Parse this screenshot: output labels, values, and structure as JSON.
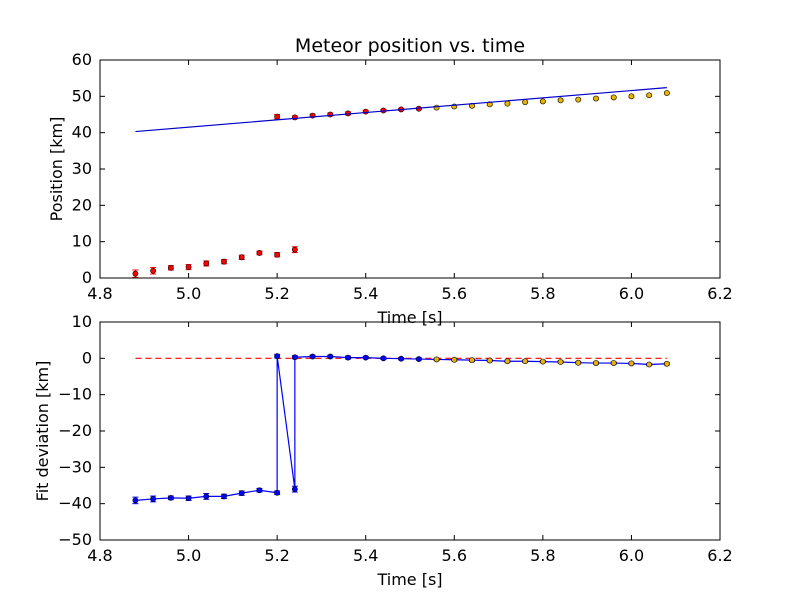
{
  "chart_data": [
    {
      "type": "scatter",
      "title": "Meteor position vs. time",
      "xlabel": "Time [s]",
      "ylabel": "Position [km]",
      "xlim": [
        4.8,
        6.2
      ],
      "ylim": [
        0,
        60
      ],
      "xticks": [
        "4.8",
        "5.0",
        "5.2",
        "5.4",
        "5.6",
        "5.8",
        "6.0",
        "6.2"
      ],
      "yticks": [
        "0",
        "10",
        "20",
        "30",
        "40",
        "50",
        "60"
      ],
      "grid": false,
      "series": [
        {
          "kind": "errorbar-points",
          "color": "#ff0000",
          "points": [
            {
              "x": 4.88,
              "y": 1.2,
              "err": 1.0
            },
            {
              "x": 4.92,
              "y": 2.0,
              "err": 0.9
            },
            {
              "x": 4.96,
              "y": 2.8,
              "err": 0.6
            },
            {
              "x": 5.0,
              "y": 3.0,
              "err": 0.7
            },
            {
              "x": 5.04,
              "y": 4.0,
              "err": 0.7
            },
            {
              "x": 5.08,
              "y": 4.5,
              "err": 0.6
            },
            {
              "x": 5.12,
              "y": 5.7,
              "err": 0.6
            },
            {
              "x": 5.16,
              "y": 6.9,
              "err": 0.5
            },
            {
              "x": 5.2,
              "y": 6.4,
              "err": 0.6
            },
            {
              "x": 5.24,
              "y": 7.8,
              "err": 0.8
            },
            {
              "x": 5.2,
              "y": 44.4,
              "err": 0.6
            },
            {
              "x": 5.24,
              "y": 44.2,
              "err": 0.4
            },
            {
              "x": 5.28,
              "y": 44.7,
              "err": 0.4
            },
            {
              "x": 5.32,
              "y": 45.0,
              "err": 0.4
            },
            {
              "x": 5.36,
              "y": 45.3,
              "err": 0.4
            },
            {
              "x": 5.4,
              "y": 45.8,
              "err": 0.3
            },
            {
              "x": 5.44,
              "y": 46.1,
              "err": 0.3
            },
            {
              "x": 5.48,
              "y": 46.4,
              "err": 0.3
            },
            {
              "x": 5.52,
              "y": 46.6,
              "err": 0.3
            }
          ]
        },
        {
          "kind": "errorbar-points",
          "color": "#e8b400",
          "points": [
            {
              "x": 5.56,
              "y": 46.9,
              "err": 0.3
            },
            {
              "x": 5.6,
              "y": 47.2,
              "err": 0.3
            },
            {
              "x": 5.64,
              "y": 47.4,
              "err": 0.3
            },
            {
              "x": 5.68,
              "y": 47.8,
              "err": 0.3
            },
            {
              "x": 5.72,
              "y": 48.0,
              "err": 0.3
            },
            {
              "x": 5.76,
              "y": 48.4,
              "err": 0.3
            },
            {
              "x": 5.8,
              "y": 48.6,
              "err": 0.3
            },
            {
              "x": 5.84,
              "y": 48.9,
              "err": 0.3
            },
            {
              "x": 5.88,
              "y": 49.1,
              "err": 0.3
            },
            {
              "x": 5.92,
              "y": 49.4,
              "err": 0.3
            },
            {
              "x": 5.96,
              "y": 49.7,
              "err": 0.3
            },
            {
              "x": 6.0,
              "y": 50.0,
              "err": 0.3
            },
            {
              "x": 6.04,
              "y": 50.3,
              "err": 0.3
            },
            {
              "x": 6.08,
              "y": 50.9,
              "err": 0.3
            }
          ]
        },
        {
          "kind": "line",
          "color": "#0000cc",
          "x": [
            4.88,
            6.08
          ],
          "y": [
            40.3,
            52.4
          ]
        }
      ]
    },
    {
      "type": "line",
      "title": "",
      "xlabel": "Time [s]",
      "ylabel": "Fit deviation [km]",
      "xlim": [
        4.8,
        6.2
      ],
      "ylim": [
        -50,
        10
      ],
      "xticks": [
        "4.8",
        "5.0",
        "5.2",
        "5.4",
        "5.6",
        "5.8",
        "6.0",
        "6.2"
      ],
      "yticks": [
        "10",
        "0",
        "−10",
        "−20",
        "−30",
        "−40",
        "−50"
      ],
      "ytick_values": [
        10,
        0,
        -10,
        -20,
        -30,
        -40,
        -50
      ],
      "grid": false,
      "series": [
        {
          "kind": "dashed-line",
          "color": "#ff0000",
          "x": [
            4.88,
            6.08
          ],
          "y": [
            0,
            0
          ]
        },
        {
          "kind": "line-with-errorbars",
          "color": "#0000ff",
          "points": [
            {
              "x": 4.88,
              "y": -39.1,
              "err": 0.9,
              "marker": "#0000ff"
            },
            {
              "x": 4.92,
              "y": -38.7,
              "err": 0.8,
              "marker": "#0000ff"
            },
            {
              "x": 4.96,
              "y": -38.4,
              "err": 0.5,
              "marker": "#0000ff"
            },
            {
              "x": 5.0,
              "y": -38.5,
              "err": 0.6,
              "marker": "#0000ff"
            },
            {
              "x": 5.04,
              "y": -38.0,
              "err": 0.8,
              "marker": "#0000ff"
            },
            {
              "x": 5.08,
              "y": -38.0,
              "err": 0.6,
              "marker": "#0000ff"
            },
            {
              "x": 5.12,
              "y": -37.1,
              "err": 0.6,
              "marker": "#0000ff"
            },
            {
              "x": 5.16,
              "y": -36.3,
              "err": 0.5,
              "marker": "#0000ff"
            },
            {
              "x": 5.2,
              "y": -37.0,
              "err": 0.5,
              "marker": "#0000ff"
            },
            {
              "x": 5.2,
              "y": 0.6,
              "err": 0.5,
              "marker": "#0000ff"
            },
            {
              "x": 5.24,
              "y": -36.0,
              "err": 0.8,
              "marker": "#0000ff"
            },
            {
              "x": 5.24,
              "y": 0.3,
              "err": 0.4,
              "marker": "#0000ff"
            },
            {
              "x": 5.28,
              "y": 0.5,
              "err": 0.4,
              "marker": "#0000ff"
            },
            {
              "x": 5.32,
              "y": 0.5,
              "err": 0.4,
              "marker": "#0000ff"
            },
            {
              "x": 5.36,
              "y": 0.2,
              "err": 0.4,
              "marker": "#0000ff"
            },
            {
              "x": 5.4,
              "y": 0.2,
              "err": 0.3,
              "marker": "#0000ff"
            },
            {
              "x": 5.44,
              "y": 0.0,
              "err": 0.3,
              "marker": "#0000ff"
            },
            {
              "x": 5.48,
              "y": -0.1,
              "err": 0.3,
              "marker": "#0000ff"
            },
            {
              "x": 5.52,
              "y": -0.2,
              "err": 0.3,
              "marker": "#0000ff"
            },
            {
              "x": 5.56,
              "y": -0.3,
              "err": 0.3,
              "marker": "#e8b400"
            },
            {
              "x": 5.6,
              "y": -0.4,
              "err": 0.3,
              "marker": "#e8b400"
            },
            {
              "x": 5.64,
              "y": -0.5,
              "err": 0.3,
              "marker": "#e8b400"
            },
            {
              "x": 5.68,
              "y": -0.6,
              "err": 0.3,
              "marker": "#e8b400"
            },
            {
              "x": 5.72,
              "y": -0.8,
              "err": 0.3,
              "marker": "#e8b400"
            },
            {
              "x": 5.76,
              "y": -0.8,
              "err": 0.3,
              "marker": "#e8b400"
            },
            {
              "x": 5.8,
              "y": -0.9,
              "err": 0.3,
              "marker": "#e8b400"
            },
            {
              "x": 5.84,
              "y": -1.0,
              "err": 0.3,
              "marker": "#e8b400"
            },
            {
              "x": 5.88,
              "y": -1.2,
              "err": 0.3,
              "marker": "#e8b400"
            },
            {
              "x": 5.92,
              "y": -1.3,
              "err": 0.3,
              "marker": "#e8b400"
            },
            {
              "x": 5.96,
              "y": -1.3,
              "err": 0.3,
              "marker": "#e8b400"
            },
            {
              "x": 6.0,
              "y": -1.4,
              "err": 0.3,
              "marker": "#e8b400"
            },
            {
              "x": 6.04,
              "y": -1.7,
              "err": 0.3,
              "marker": "#e8b400"
            },
            {
              "x": 6.08,
              "y": -1.5,
              "err": 0.3,
              "marker": "#e8b400"
            }
          ]
        }
      ]
    }
  ]
}
